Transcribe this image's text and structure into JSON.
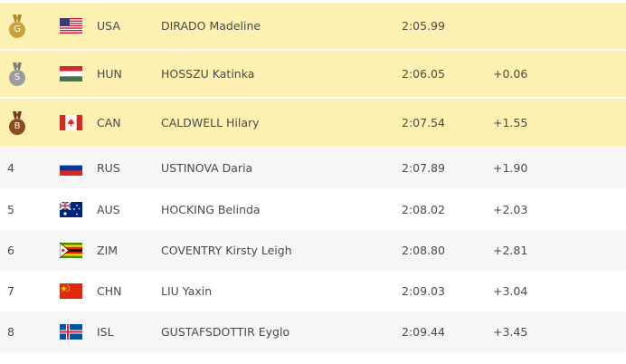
{
  "rows": [
    {
      "rank": "G",
      "country": "USA",
      "name": "DIRADO Madeline",
      "time": "2:05.99"
    },
    {
      "rank": "S",
      "country": "HUN",
      "name": "HOSSZU Katinka",
      "time": "2:06.05",
      "diff": "+0.06"
    },
    {
      "rank": "B",
      "country": "CAN",
      "name": "CALDWELL Hilary",
      "time": "2:07.54",
      "diff": "+1.55"
    },
    {
      "rank": "4",
      "country": "RUS",
      "name": "USTINOVA Daria",
      "time": "2:07.89",
      "diff": "+1.90"
    },
    {
      "rank": "5",
      "country": "AUS",
      "name": "HOCKING Belinda",
      "time": "2:08.02",
      "diff": "+2.03"
    },
    {
      "rank": "6",
      "country": "ZIM",
      "name": "COVENTRY Kirsty Leigh",
      "time": "2:08.80",
      "diff": "+2.81"
    },
    {
      "rank": "7",
      "country": "CHN",
      "name": "LIU Yaxin",
      "time": "2:09.03",
      "diff": "+3.04"
    },
    {
      "rank": "8",
      "country": "ISL",
      "name": "GUSTAFSDOTTIR Eyglo",
      "time": "2:09.44",
      "diff": "+3.45"
    }
  ]
}
